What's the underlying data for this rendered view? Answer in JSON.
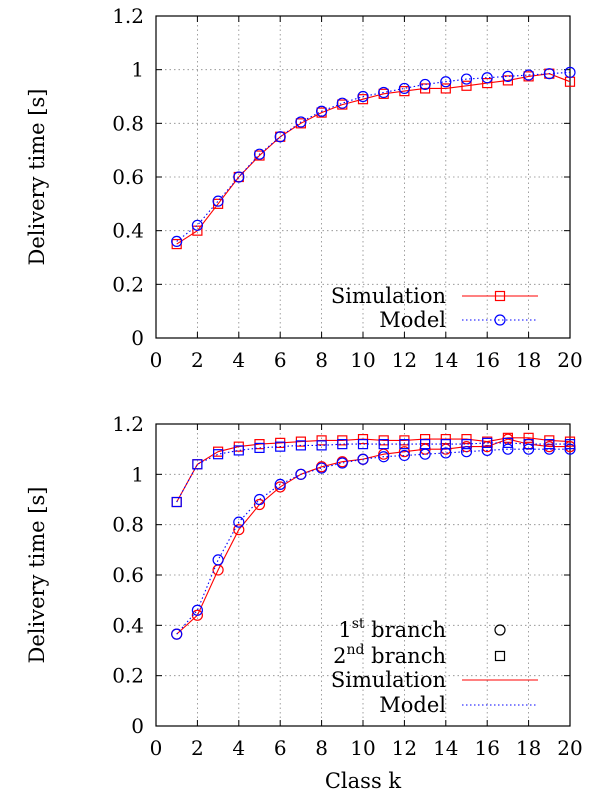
{
  "chart_data": [
    {
      "type": "line",
      "xlabel": "",
      "ylabel": "Delivery time [s]",
      "xlim": [
        0,
        20
      ],
      "ylim": [
        0,
        1.2
      ],
      "xticks": [
        "0",
        "2",
        "4",
        "6",
        "8",
        "10",
        "12",
        "14",
        "16",
        "18",
        "20"
      ],
      "yticks": [
        "0",
        "0.2",
        "0.4",
        "0.6",
        "0.8",
        "1",
        "1.2"
      ],
      "grid": true,
      "legend_position": "bottom-right",
      "x": [
        1,
        2,
        3,
        4,
        5,
        6,
        7,
        8,
        9,
        10,
        11,
        12,
        13,
        14,
        15,
        16,
        17,
        18,
        19,
        20
      ],
      "series": [
        {
          "name": "Simulation",
          "color": "#ff0000",
          "line_style": "solid",
          "marker": "square",
          "values": [
            0.35,
            0.4,
            0.5,
            0.6,
            0.68,
            0.75,
            0.8,
            0.84,
            0.87,
            0.89,
            0.91,
            0.92,
            0.93,
            0.93,
            0.94,
            0.95,
            0.96,
            0.975,
            0.985,
            0.955
          ]
        },
        {
          "name": "Model",
          "color": "#0000ff",
          "line_style": "dotted",
          "marker": "circle",
          "values": [
            0.36,
            0.42,
            0.51,
            0.6,
            0.685,
            0.75,
            0.805,
            0.845,
            0.875,
            0.9,
            0.915,
            0.93,
            0.945,
            0.955,
            0.965,
            0.97,
            0.975,
            0.98,
            0.985,
            0.99
          ]
        }
      ]
    },
    {
      "type": "line",
      "xlabel": "Class k",
      "ylabel": "Delivery time [s]",
      "xlim": [
        0,
        20
      ],
      "ylim": [
        0,
        1.2
      ],
      "xticks": [
        "0",
        "2",
        "4",
        "6",
        "8",
        "10",
        "12",
        "14",
        "16",
        "18",
        "20"
      ],
      "yticks": [
        "0",
        "0.2",
        "0.4",
        "0.6",
        "0.8",
        "1",
        "1.2"
      ],
      "grid": true,
      "legend_position": "bottom-right",
      "legend": [
        {
          "base": "1",
          "sup": "st",
          "suffix": " branch",
          "marker": "circle"
        },
        {
          "base": "2",
          "sup": "nd",
          "suffix": " branch",
          "marker": "square"
        },
        {
          "label": "Simulation",
          "line_style": "solid",
          "color": "#ff0000"
        },
        {
          "label": "Model",
          "line_style": "dotted",
          "color": "#0000ff"
        }
      ],
      "x": [
        1,
        2,
        3,
        4,
        5,
        6,
        7,
        8,
        9,
        10,
        11,
        12,
        13,
        14,
        15,
        16,
        17,
        18,
        19,
        20
      ],
      "series": [
        {
          "branch": "1st branch",
          "kind": "Simulation",
          "color": "#ff0000",
          "line_style": "solid",
          "marker": "circle",
          "values": [
            0.365,
            0.44,
            0.62,
            0.78,
            0.88,
            0.95,
            1.0,
            1.03,
            1.05,
            1.06,
            1.08,
            1.09,
            1.1,
            1.1,
            1.11,
            1.11,
            1.14,
            1.12,
            1.11,
            1.11
          ]
        },
        {
          "branch": "1st branch",
          "kind": "Model",
          "color": "#0000ff",
          "line_style": "dotted",
          "marker": "circle",
          "values": [
            0.365,
            0.46,
            0.66,
            0.81,
            0.9,
            0.96,
            1.0,
            1.025,
            1.045,
            1.06,
            1.07,
            1.075,
            1.08,
            1.085,
            1.09,
            1.095,
            1.1,
            1.1,
            1.1,
            1.1
          ]
        },
        {
          "branch": "2nd branch",
          "kind": "Simulation",
          "color": "#ff0000",
          "line_style": "solid",
          "marker": "square",
          "values": [
            0.89,
            1.04,
            1.09,
            1.11,
            1.12,
            1.125,
            1.13,
            1.135,
            1.135,
            1.14,
            1.135,
            1.135,
            1.14,
            1.14,
            1.14,
            1.13,
            1.145,
            1.145,
            1.135,
            1.13
          ]
        },
        {
          "branch": "2nd branch",
          "kind": "Model",
          "color": "#0000ff",
          "line_style": "dotted",
          "marker": "square",
          "values": [
            0.89,
            1.04,
            1.08,
            1.095,
            1.105,
            1.11,
            1.115,
            1.115,
            1.12,
            1.12,
            1.12,
            1.12,
            1.12,
            1.12,
            1.12,
            1.125,
            1.125,
            1.12,
            1.12,
            1.12
          ]
        }
      ]
    }
  ]
}
